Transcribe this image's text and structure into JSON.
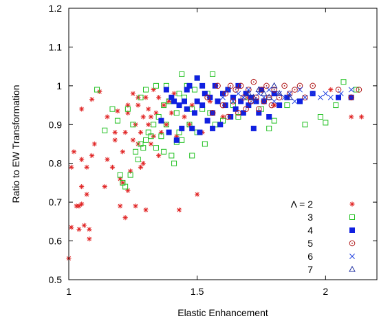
{
  "chart_data": {
    "type": "scatter",
    "title": "",
    "xlabel": "Elastic Enhancement",
    "ylabel": "Ratio to EW Transformation",
    "xlim": [
      1,
      2.2
    ],
    "ylim": [
      0.5,
      1.2
    ],
    "xticks": [
      "1",
      "1.5",
      "2"
    ],
    "xtick_values": [
      1,
      1.5,
      2
    ],
    "yticks": [
      "0.5",
      "0.6",
      "0.7",
      "0.8",
      "0.9",
      "1",
      "1.1",
      "1.2"
    ],
    "ytick_values": [
      0.5,
      0.6,
      0.7,
      0.8,
      0.9,
      1.0,
      1.1,
      1.2
    ],
    "grid": false,
    "legend_placement": "bottom-right",
    "legend": {
      "prefix": "Λ = ",
      "entries": [
        "2",
        "3",
        "4",
        "5",
        "6",
        "7"
      ]
    },
    "series": [
      {
        "name": "2",
        "marker": "asterisk",
        "color": "#e02020",
        "points": [
          [
            1.0,
            0.555
          ],
          [
            1.01,
            0.635
          ],
          [
            1.01,
            0.79
          ],
          [
            1.02,
            0.83
          ],
          [
            1.03,
            0.69
          ],
          [
            1.04,
            0.69
          ],
          [
            1.04,
            0.63
          ],
          [
            1.05,
            0.695
          ],
          [
            1.05,
            0.81
          ],
          [
            1.05,
            0.74
          ],
          [
            1.06,
            0.64
          ],
          [
            1.07,
            0.72
          ],
          [
            1.07,
            0.79
          ],
          [
            1.08,
            0.63
          ],
          [
            1.08,
            0.605
          ],
          [
            1.09,
            0.82
          ],
          [
            1.1,
            0.85
          ],
          [
            1.05,
            0.94
          ],
          [
            1.09,
            0.965
          ],
          [
            1.12,
            0.985
          ],
          [
            1.14,
            0.74
          ],
          [
            1.15,
            0.81
          ],
          [
            1.17,
            0.79
          ],
          [
            1.18,
            0.88
          ],
          [
            1.19,
            0.935
          ],
          [
            1.2,
            0.76
          ],
          [
            1.2,
            0.69
          ],
          [
            1.21,
            0.83
          ],
          [
            1.21,
            0.75
          ],
          [
            1.22,
            0.88
          ],
          [
            1.22,
            0.66
          ],
          [
            1.23,
            0.93
          ],
          [
            1.23,
            0.73
          ],
          [
            1.24,
            0.78
          ],
          [
            1.25,
            0.86
          ],
          [
            1.25,
            0.98
          ],
          [
            1.26,
            0.9
          ],
          [
            1.26,
            0.69
          ],
          [
            1.27,
            0.85
          ],
          [
            1.27,
            0.95
          ],
          [
            1.28,
            0.79
          ],
          [
            1.28,
            0.88
          ],
          [
            1.29,
            0.92
          ],
          [
            1.29,
            0.8
          ],
          [
            1.3,
            0.97
          ],
          [
            1.3,
            0.68
          ],
          [
            1.31,
            0.9
          ],
          [
            1.31,
            0.94
          ],
          [
            1.32,
            0.85
          ],
          [
            1.33,
            0.99
          ],
          [
            1.33,
            0.87
          ],
          [
            1.34,
            0.93
          ],
          [
            1.35,
            0.82
          ],
          [
            1.36,
            0.88
          ],
          [
            1.37,
            0.95
          ],
          [
            1.38,
            0.9
          ],
          [
            1.39,
            0.96
          ],
          [
            1.4,
            0.93
          ],
          [
            1.41,
            0.98
          ],
          [
            1.42,
            0.87
          ],
          [
            1.43,
            0.68
          ],
          [
            1.45,
            0.92
          ],
          [
            1.47,
            0.9
          ],
          [
            1.48,
            0.95
          ],
          [
            1.5,
            0.72
          ],
          [
            1.52,
            0.88
          ],
          [
            1.55,
            0.96
          ],
          [
            1.6,
            0.92
          ],
          [
            1.65,
            0.94
          ],
          [
            1.7,
            0.97
          ],
          [
            1.8,
            0.95
          ],
          [
            1.9,
            0.96
          ],
          [
            2.02,
            0.99
          ],
          [
            2.1,
            0.92
          ],
          [
            2.14,
            0.92
          ],
          [
            1.27,
            0.97
          ],
          [
            1.23,
            0.95
          ],
          [
            1.35,
            0.97
          ],
          [
            1.18,
            0.86
          ],
          [
            1.15,
            0.92
          ],
          [
            1.32,
            0.92
          ]
        ]
      },
      {
        "name": "3",
        "marker": "square-open",
        "color": "#20c020",
        "points": [
          [
            1.11,
            0.99
          ],
          [
            1.14,
            0.885
          ],
          [
            1.17,
            0.94
          ],
          [
            1.19,
            0.91
          ],
          [
            1.2,
            0.77
          ],
          [
            1.21,
            0.75
          ],
          [
            1.22,
            0.74
          ],
          [
            1.23,
            0.94
          ],
          [
            1.24,
            0.77
          ],
          [
            1.25,
            0.9
          ],
          [
            1.26,
            0.83
          ],
          [
            1.27,
            0.81
          ],
          [
            1.28,
            0.85
          ],
          [
            1.28,
            0.97
          ],
          [
            1.29,
            0.84
          ],
          [
            1.3,
            0.86
          ],
          [
            1.3,
            0.99
          ],
          [
            1.31,
            0.88
          ],
          [
            1.32,
            0.87
          ],
          [
            1.33,
            0.9
          ],
          [
            1.34,
            0.84
          ],
          [
            1.34,
            1.0
          ],
          [
            1.35,
            0.92
          ],
          [
            1.36,
            0.87
          ],
          [
            1.37,
            0.95
          ],
          [
            1.38,
            0.9
          ],
          [
            1.38,
            1.0
          ],
          [
            1.39,
            0.96
          ],
          [
            1.4,
            0.82
          ],
          [
            1.41,
            0.8
          ],
          [
            1.42,
            0.93
          ],
          [
            1.43,
            0.88
          ],
          [
            1.43,
            0.98
          ],
          [
            1.44,
            0.86
          ],
          [
            1.44,
            1.03
          ],
          [
            1.45,
            0.97
          ],
          [
            1.46,
            1.0
          ],
          [
            1.47,
            0.9
          ],
          [
            1.48,
            0.94
          ],
          [
            1.48,
            0.82
          ],
          [
            1.49,
            0.99
          ],
          [
            1.5,
            0.88
          ],
          [
            1.5,
            1.02
          ],
          [
            1.52,
            0.94
          ],
          [
            1.53,
            0.85
          ],
          [
            1.54,
            0.98
          ],
          [
            1.55,
            0.93
          ],
          [
            1.56,
            1.03
          ],
          [
            1.57,
            0.9
          ],
          [
            1.58,
            0.96
          ],
          [
            1.6,
            0.91
          ],
          [
            1.62,
            0.99
          ],
          [
            1.64,
            0.95
          ],
          [
            1.66,
            0.92
          ],
          [
            1.7,
            0.97
          ],
          [
            1.75,
            0.94
          ],
          [
            1.78,
            0.89
          ],
          [
            1.8,
            0.91
          ],
          [
            1.85,
            0.95
          ],
          [
            1.9,
            0.96
          ],
          [
            1.92,
            0.9
          ],
          [
            1.98,
            0.92
          ],
          [
            2.0,
            0.905
          ],
          [
            2.04,
            0.95
          ],
          [
            2.07,
            1.01
          ],
          [
            2.12,
            0.99
          ],
          [
            1.37,
            0.83
          ],
          [
            1.42,
            0.855
          ]
        ]
      },
      {
        "name": "4",
        "marker": "square-filled",
        "color": "#1020e0",
        "points": [
          [
            1.36,
            0.91
          ],
          [
            1.38,
            0.99
          ],
          [
            1.39,
            0.88
          ],
          [
            1.4,
            0.97
          ],
          [
            1.41,
            0.96
          ],
          [
            1.42,
            0.86
          ],
          [
            1.43,
            0.95
          ],
          [
            1.44,
            0.89
          ],
          [
            1.45,
            0.96
          ],
          [
            1.46,
            0.94
          ],
          [
            1.47,
            1.0
          ],
          [
            1.48,
            0.89
          ],
          [
            1.49,
            0.93
          ],
          [
            1.5,
            0.96
          ],
          [
            1.5,
            1.02
          ],
          [
            1.51,
            0.88
          ],
          [
            1.52,
            0.95
          ],
          [
            1.53,
            0.98
          ],
          [
            1.54,
            0.91
          ],
          [
            1.55,
            0.97
          ],
          [
            1.56,
            0.93
          ],
          [
            1.57,
            1.0
          ],
          [
            1.58,
            0.96
          ],
          [
            1.59,
            0.9
          ],
          [
            1.6,
            0.98
          ],
          [
            1.61,
            0.95
          ],
          [
            1.62,
            0.99
          ],
          [
            1.63,
            0.92
          ],
          [
            1.64,
            0.97
          ],
          [
            1.65,
            0.94
          ],
          [
            1.66,
            1.0
          ],
          [
            1.67,
            0.96
          ],
          [
            1.68,
            0.93
          ],
          [
            1.69,
            0.98
          ],
          [
            1.7,
            0.95
          ],
          [
            1.71,
            0.97
          ],
          [
            1.72,
            0.89
          ],
          [
            1.73,
            0.96
          ],
          [
            1.74,
            0.93
          ],
          [
            1.75,
            0.99
          ],
          [
            1.76,
            0.96
          ],
          [
            1.78,
            0.92
          ],
          [
            1.8,
            0.98
          ],
          [
            1.82,
            0.95
          ],
          [
            1.85,
            0.97
          ],
          [
            1.9,
            0.96
          ],
          [
            1.95,
            0.98
          ],
          [
            2.05,
            0.97
          ],
          [
            2.1,
            0.97
          ],
          [
            1.56,
            0.89
          ],
          [
            1.46,
            0.99
          ],
          [
            1.52,
            1.0
          ]
        ]
      },
      {
        "name": "5",
        "marker": "circle-dot",
        "color": "#b01818",
        "points": [
          [
            1.54,
            0.97
          ],
          [
            1.56,
            0.93
          ],
          [
            1.58,
            1.0
          ],
          [
            1.6,
            0.95
          ],
          [
            1.61,
            0.98
          ],
          [
            1.62,
            0.92
          ],
          [
            1.63,
            1.0
          ],
          [
            1.64,
            0.96
          ],
          [
            1.65,
            0.99
          ],
          [
            1.66,
            0.93
          ],
          [
            1.67,
            1.0
          ],
          [
            1.68,
            0.97
          ],
          [
            1.69,
            0.94
          ],
          [
            1.7,
            0.99
          ],
          [
            1.71,
            0.96
          ],
          [
            1.72,
            1.01
          ],
          [
            1.73,
            0.97
          ],
          [
            1.74,
            0.94
          ],
          [
            1.75,
            0.99
          ],
          [
            1.76,
            0.96
          ],
          [
            1.77,
            1.0
          ],
          [
            1.78,
            0.97
          ],
          [
            1.79,
            0.95
          ],
          [
            1.8,
            0.99
          ],
          [
            1.82,
            0.97
          ],
          [
            1.84,
            1.0
          ],
          [
            1.86,
            0.98
          ],
          [
            1.88,
            0.99
          ],
          [
            1.9,
            1.0
          ],
          [
            1.92,
            0.97
          ],
          [
            1.95,
            1.0
          ],
          [
            2.05,
            0.99
          ],
          [
            2.1,
            0.97
          ],
          [
            2.13,
            0.99
          ]
        ]
      },
      {
        "name": "6",
        "marker": "x",
        "color": "#2040e0",
        "points": [
          [
            1.6,
            0.97
          ],
          [
            1.62,
            0.99
          ],
          [
            1.64,
            0.96
          ],
          [
            1.66,
            0.98
          ],
          [
            1.68,
            0.97
          ],
          [
            1.7,
            0.99
          ],
          [
            1.72,
            0.96
          ],
          [
            1.74,
            0.98
          ],
          [
            1.76,
            0.97
          ],
          [
            1.78,
            0.99
          ],
          [
            1.8,
            0.96
          ],
          [
            1.82,
            0.98
          ],
          [
            1.84,
            0.97
          ],
          [
            1.86,
            0.98
          ],
          [
            1.88,
            0.96
          ],
          [
            1.9,
            0.99
          ],
          [
            1.92,
            0.97
          ],
          [
            1.95,
            0.98
          ],
          [
            1.98,
            0.97
          ],
          [
            2.0,
            0.98
          ],
          [
            2.02,
            0.97
          ],
          [
            2.06,
            0.98
          ],
          [
            2.1,
            0.99
          ]
        ]
      },
      {
        "name": "7",
        "marker": "triangle",
        "color": "#2030a0",
        "points": [
          [
            1.7,
            0.98
          ],
          [
            1.72,
            0.97
          ],
          [
            1.74,
            0.99
          ],
          [
            1.76,
            0.98
          ],
          [
            1.78,
            0.97
          ],
          [
            1.8,
            1.0
          ],
          [
            1.82,
            0.98
          ],
          [
            1.86,
            0.97
          ]
        ]
      }
    ]
  }
}
